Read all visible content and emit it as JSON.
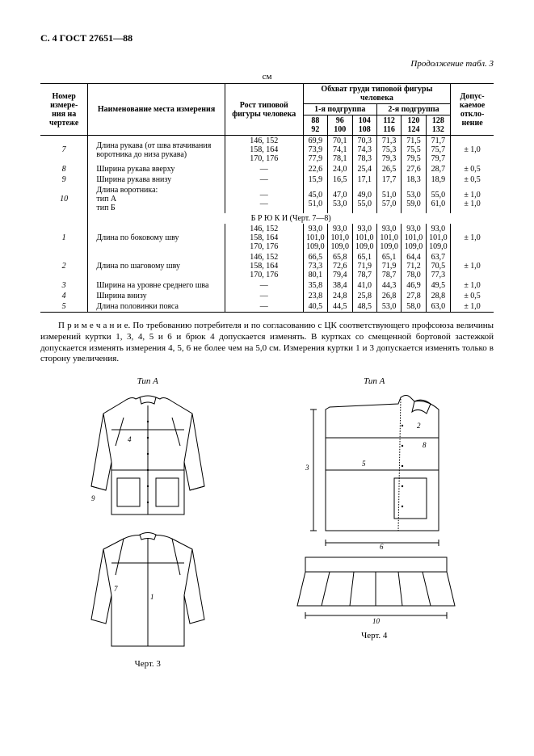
{
  "header": "С. 4 ГОСТ 27651—88",
  "table_caption": "Продолжение табл. 3",
  "unit": "см",
  "columns": {
    "c1": "Номер измере-\nния на чертеже",
    "c2": "Наименование места измерения",
    "c3": "Рост типовой фигуры человека",
    "group_main": "Обхват груди типовой фигуры человека",
    "sub1": "1-я подгруппа",
    "sub2": "2-я подгруппа",
    "s88": "88\n92",
    "s96": "96\n100",
    "s104": "104\n108",
    "s112": "112\n116",
    "s120": "120\n124",
    "s128": "128\n132",
    "c_last": "Допус-\nкаемое откло-\nнение"
  },
  "rows": [
    {
      "n": "7",
      "name": "Длина рукава (от шва втачивания воротника до низа рукава)",
      "h": "146, 152\n158, 164\n170, 176",
      "v": [
        "69,9\n73,9\n77,9",
        "70,1\n74,1\n78,1",
        "70,3\n74,3\n78,3",
        "71,3\n75,3\n79,3",
        "71,5\n75,5\n79,5",
        "71,7\n75,7\n79,7"
      ],
      "tol": "± 1,0"
    },
    {
      "n": "8",
      "name": "Ширина рукава вверху",
      "h": "—",
      "v": [
        "22,6",
        "24,0",
        "25,4",
        "26,5",
        "27,6",
        "28,7"
      ],
      "tol": "± 0,5"
    },
    {
      "n": "9",
      "name": "Ширина рукава внизу",
      "h": "—",
      "v": [
        "15,9",
        "16,5",
        "17,1",
        "17,7",
        "18,3",
        "18,9"
      ],
      "tol": "± 0,5"
    },
    {
      "n": "10",
      "name": "Длина воротника:\nтип А\nтип Б",
      "h": "—\n—",
      "v": [
        "45,0\n51,0",
        "47,0\n53,0",
        "49,0\n55,0",
        "51,0\n57,0",
        "53,0\n59,0",
        "55,0\n61,0"
      ],
      "tol": "± 1,0\n± 1,0"
    }
  ],
  "section_title": "Б Р Ю К И (Черт. 7—8)",
  "rows2": [
    {
      "n": "1",
      "name": "Длина по боковому шву",
      "h": "146, 152\n158, 164\n170, 176",
      "v": [
        "93,0\n101,0\n109,0",
        "93,0\n101,0\n109,0",
        "93,0\n101,0\n109,0",
        "93,0\n101,0\n109,0",
        "93,0\n101,0\n109,0",
        "93,0\n101,0\n109,0"
      ],
      "tol": "± 1,0"
    },
    {
      "n": "2",
      "name": "Длина по шаговому шву",
      "h": "146, 152\n158, 164\n170, 176",
      "v": [
        "66,5\n73,3\n80,1",
        "65,8\n72,6\n79,4",
        "65,1\n71,9\n78,7",
        "65,1\n71,9\n78,7",
        "64,4\n71,2\n78,0",
        "63,7\n70,5\n77,3"
      ],
      "tol": "± 1,0"
    },
    {
      "n": "3",
      "name": "Ширина на уровне среднего шва",
      "h": "—",
      "v": [
        "35,8",
        "38,4",
        "41,0",
        "44,3",
        "46,9",
        "49,5"
      ],
      "tol": "± 1,0"
    },
    {
      "n": "4",
      "name": "Ширина внизу",
      "h": "—",
      "v": [
        "23,8",
        "24,8",
        "25,8",
        "26,8",
        "27,8",
        "28,8"
      ],
      "tol": "± 0,5"
    },
    {
      "n": "5",
      "name": "Длина половинки пояса",
      "h": "—",
      "v": [
        "40,5",
        "44,5",
        "48,5",
        "53,0",
        "58,0",
        "63,0"
      ],
      "tol": "± 1,0"
    }
  ],
  "note": "П р и м е ч а н и е. По требованию потребителя и по согласованию с ЦК соответствующего профсоюза величины измерений куртки 1, 3, 4, 5 и 6 и брюк 4 допускается изменять. В куртках со смещенной бортовой застежкой допускается изменять измерения 4, 5, 6 не более чем на 5,0 см. Измерения куртки 1 и 3 допускается изменять только в сторону увеличения.",
  "figs": {
    "left_title": "Тип А",
    "right_title": "Тип А",
    "caption_left": "Черт. 3",
    "caption_right": "Черт. 4"
  }
}
